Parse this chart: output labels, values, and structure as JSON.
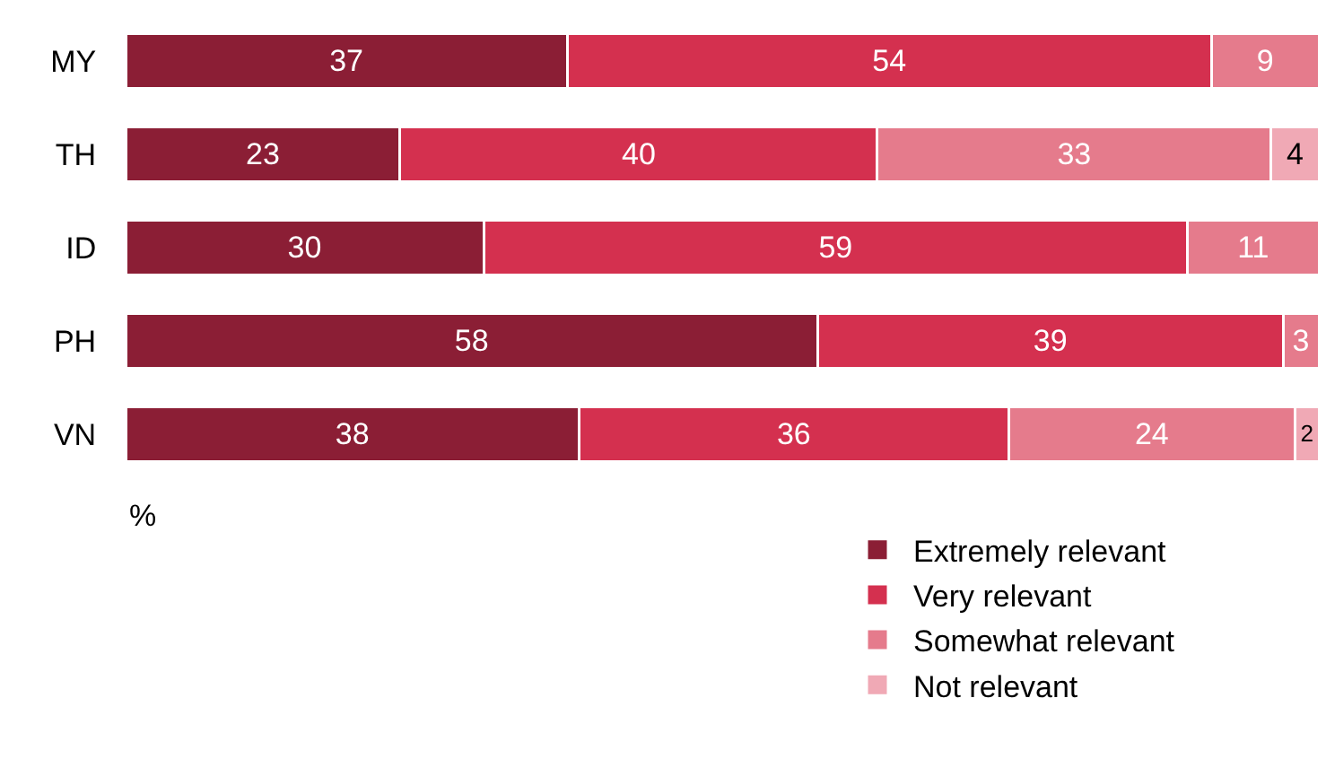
{
  "chart_data": {
    "type": "bar",
    "orientation": "horizontal",
    "stacked": true,
    "categories": [
      "MY",
      "TH",
      "ID",
      "PH",
      "VN"
    ],
    "series": [
      {
        "name": "Extremely relevant",
        "color": "#8b1e35",
        "values": [
          37,
          23,
          30,
          58,
          38
        ]
      },
      {
        "name": "Very relevant",
        "color": "#d4304f",
        "values": [
          54,
          40,
          59,
          39,
          36
        ]
      },
      {
        "name": "Somewhat relevant",
        "color": "#e57b8c",
        "values": [
          9,
          33,
          11,
          3,
          24
        ]
      },
      {
        "name": "Not relevant",
        "color": "#f0a9b5",
        "values": [
          null,
          4,
          null,
          null,
          2
        ]
      }
    ],
    "xlim": [
      0,
      100
    ],
    "data_labels": true,
    "tick_labels": "y",
    "legend": "bottom right",
    "annotations": [
      "%"
    ]
  }
}
